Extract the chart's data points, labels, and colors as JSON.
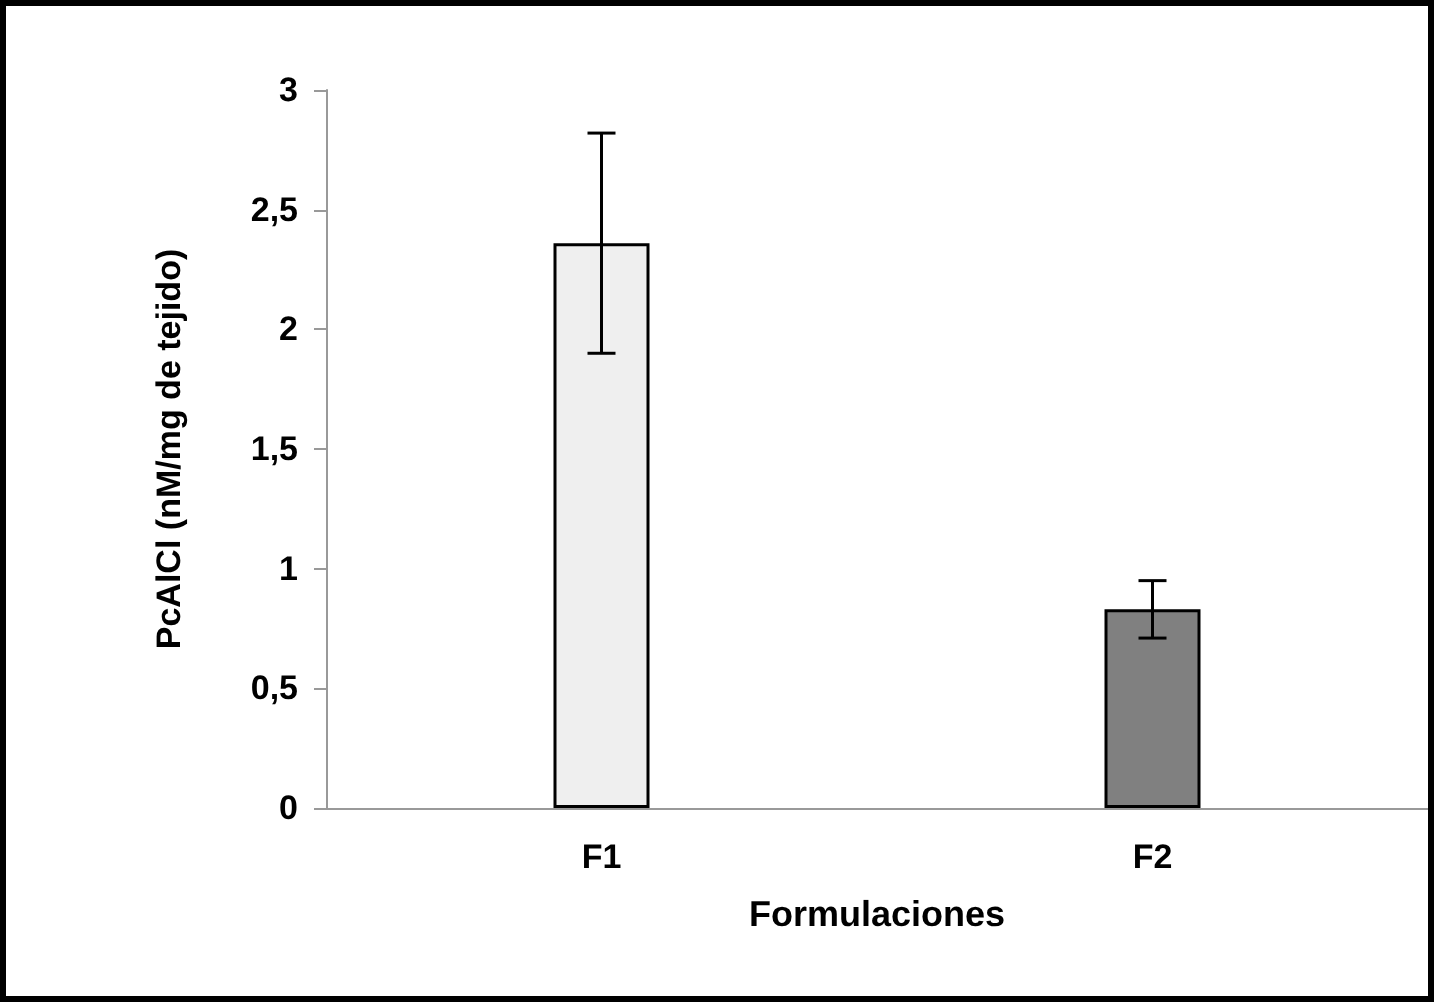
{
  "chart_data": {
    "type": "bar",
    "xlabel": "Formulaciones",
    "ylabel": "PcAlCl (nM/mg de tejido)",
    "categories": [
      "F1",
      "F2"
    ],
    "values": [
      2.36,
      0.83
    ],
    "colors": [
      "#efefef",
      "#808080"
    ],
    "errors": [
      0.46,
      0.12
    ],
    "ylim": [
      0,
      3
    ],
    "yticks": [
      0,
      {
        "value": 0.5,
        "label": "0,5"
      },
      1,
      {
        "value": 1.5,
        "label": "1,5"
      },
      2,
      {
        "value": 2.5,
        "label": "2,5"
      },
      3
    ],
    "grid": false
  }
}
